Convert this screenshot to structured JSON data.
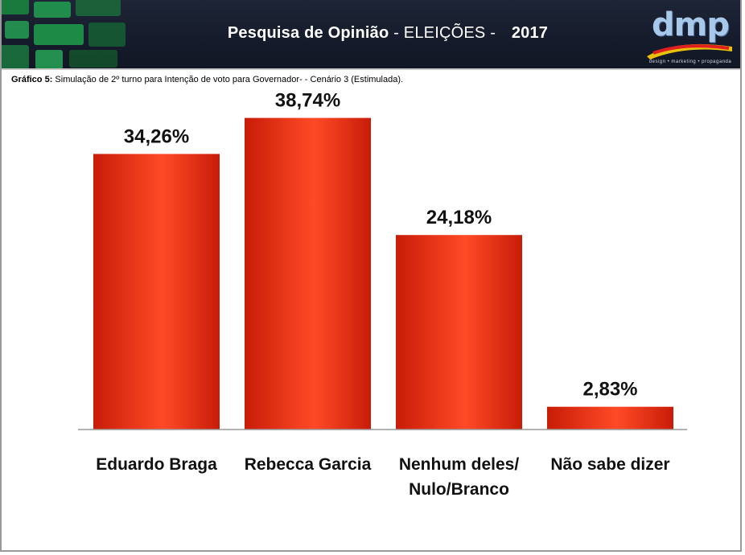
{
  "header": {
    "title_bold": "Pesquisa de Opinião",
    "title_normal": " - ELEIÇÕES - ",
    "year": "2017",
    "logo_text": "dmp",
    "logo_tagline": "design • marketing • propaganda"
  },
  "subtitle": {
    "label": "Gráfico 5:",
    "text": " Simulação de 2º turno para Intenção de voto para Governador- - Cenário 3 (Estimulada)."
  },
  "colors": {
    "bar_dark": "#c81c08",
    "bar_light": "#ff4a26",
    "header_bg": "#1a2030",
    "tile_green": "#1f9e4a"
  },
  "chart_data": {
    "type": "bar",
    "categories": [
      [
        "Eduardo Braga"
      ],
      [
        "Rebecca Garcia"
      ],
      [
        "Nenhum deles/",
        "Nulo/Branco"
      ],
      [
        "Não sabe dizer"
      ]
    ],
    "values": [
      34.26,
      38.74,
      24.18,
      2.83
    ],
    "value_labels": [
      "34,26%",
      "38,74%",
      "24,18%",
      "2,83%"
    ],
    "ylim": [
      0,
      40
    ],
    "grid": false,
    "legend": "none"
  }
}
